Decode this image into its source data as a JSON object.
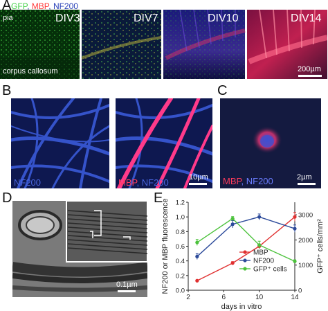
{
  "panels": {
    "A": {
      "letter": "A",
      "legend": {
        "gfp": "GFP",
        "mbp": "MBP",
        "nf200": "NF200",
        "sep": ", "
      },
      "tiles": [
        {
          "label": "DIV3"
        },
        {
          "label": "DIV7"
        },
        {
          "label": "DIV10"
        },
        {
          "label": "DIV14"
        }
      ],
      "pia": "pia",
      "corpus_callosum": "corpus callosum",
      "scale": "200µm"
    },
    "B": {
      "letter": "B",
      "left_label": "NF200",
      "right_label_mbp": "MBP",
      "right_label_nf": "NF200",
      "scale": "10µm"
    },
    "C": {
      "letter": "C",
      "label_mbp": "MBP",
      "label_nf": "NF200",
      "scale": "2µm"
    },
    "D": {
      "letter": "D",
      "scale": "0.1µm"
    },
    "E": {
      "letter": "E"
    }
  },
  "colors": {
    "gfp": "#46d24a",
    "mbp": "#e03030",
    "nf200": "#2c4a9a"
  },
  "chart_data": {
    "type": "line",
    "xlabel": "days in vitro",
    "ylabel_left": "NF200 or MBP fluorescence",
    "ylabel_right": "GFP⁺ cells/mm²",
    "xlim": [
      2,
      14
    ],
    "ylim_left": [
      0,
      1.2
    ],
    "ylim_right": [
      0,
      3500
    ],
    "x_ticks": [
      "2",
      "6",
      "10",
      "14"
    ],
    "y_left_ticks": [
      "0.0",
      "0.2",
      "0.4",
      "0.6",
      "0.8",
      "1.0",
      "1.2"
    ],
    "y_right_ticks": [
      "0",
      "1000",
      "2000",
      "3000"
    ],
    "legend_placement": "bottom-right",
    "series": [
      {
        "name": "MBP",
        "axis": "left",
        "color": "#e03030",
        "x": [
          3,
          7,
          10,
          14
        ],
        "y": [
          0.13,
          0.37,
          0.6,
          1.0
        ],
        "err": [
          0.01,
          0.02,
          0.03,
          0.06
        ]
      },
      {
        "name": "NF200",
        "axis": "left",
        "color": "#2c4a9a",
        "x": [
          3,
          7,
          10,
          14
        ],
        "y": [
          0.46,
          0.9,
          1.0,
          0.84
        ],
        "err": [
          0.04,
          0.05,
          0.04,
          0.05
        ]
      },
      {
        "name": "GFP⁺ cells",
        "axis": "right",
        "color": "#4cc23c",
        "x": [
          3,
          7,
          10,
          14
        ],
        "y": [
          1900,
          2850,
          1800,
          1150
        ],
        "err": [
          120,
          80,
          150,
          60
        ]
      }
    ]
  }
}
